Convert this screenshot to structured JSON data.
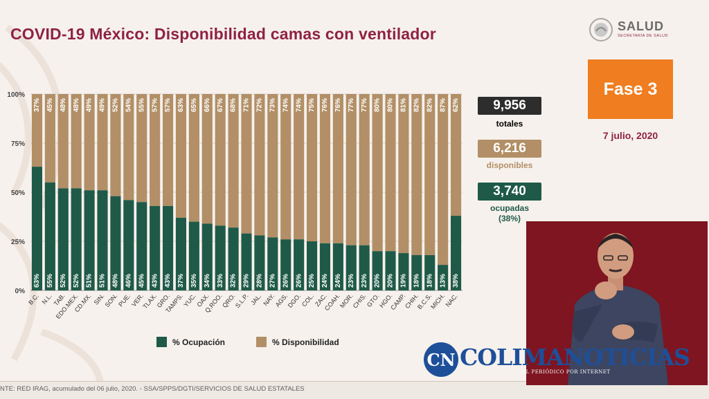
{
  "title": "COVID-19 México: Disponibilidad camas con ventilador",
  "logo": {
    "name": "SALUD",
    "subtitle": "SECRETARÍA DE SALUD"
  },
  "fase": "Fase 3",
  "date": "7 julio, 2020",
  "stats": [
    {
      "value": "9,956",
      "label": "totales",
      "color": "#2d2d2d"
    },
    {
      "value": "6,216",
      "label": "disponibles",
      "color": "#b28f66"
    },
    {
      "value": "3,740",
      "label": "ocupadas",
      "label2": "(38%)",
      "color": "#1f5a48"
    }
  ],
  "legend": {
    "ocupacion": "% Ocupación",
    "disponibilidad": "% Disponibilidad"
  },
  "source": "NTE: RED IRAG, acumulado del 06 julio, 2020. -  SSA/SPPS/DGTI/SERVICIOS DE SALUD ESTATALES",
  "colors": {
    "ocupacion": "#1f5a48",
    "disponibilidad": "#b28f66",
    "brand": "#8f2145",
    "fase": "#f07d1f"
  },
  "watermark": {
    "circle": "CN",
    "text": "COLIMANOTICIAS",
    "sub": "EL PERIÓDICO POR INTERNET"
  },
  "chart_data": {
    "type": "bar",
    "stacked": true,
    "categories": [
      "B.C.",
      "N.L.",
      "TAB.",
      "EDO.MEX.",
      "CD.MX.",
      "SIN.",
      "SON.",
      "PUE.",
      "VER.",
      "TLAX.",
      "GRO.",
      "TAMPS.",
      "YUC.",
      "OAX.",
      "Q.ROO.",
      "QRO.",
      "S.L.P.",
      "JAL.",
      "NAY.",
      "AGS.",
      "DGO.",
      "COL.",
      "ZAC.",
      "COAH.",
      "MOR.",
      "CHIS.",
      "GTO.",
      "HGO.",
      "CAMP.",
      "CHIH.",
      "B.C.S.",
      "MICH.",
      "NAC."
    ],
    "series": [
      {
        "name": "% Ocupación",
        "values": [
          63,
          55,
          52,
          52,
          51,
          51,
          48,
          46,
          45,
          43,
          43,
          37,
          35,
          34,
          33,
          32,
          29,
          28,
          27,
          26,
          26,
          25,
          24,
          24,
          23,
          23,
          20,
          20,
          19,
          18,
          18,
          13,
          38
        ]
      },
      {
        "name": "% Disponibilidad",
        "values": [
          37,
          45,
          48,
          48,
          49,
          49,
          52,
          54,
          55,
          57,
          57,
          63,
          65,
          66,
          67,
          68,
          71,
          72,
          73,
          74,
          74,
          75,
          76,
          76,
          77,
          77,
          80,
          80,
          81,
          82,
          82,
          87,
          62
        ]
      }
    ],
    "yticks": [
      "0%",
      "25%",
      "50%",
      "75%",
      "100%"
    ],
    "ylim": [
      0,
      100
    ],
    "legend_position": "bottom"
  }
}
